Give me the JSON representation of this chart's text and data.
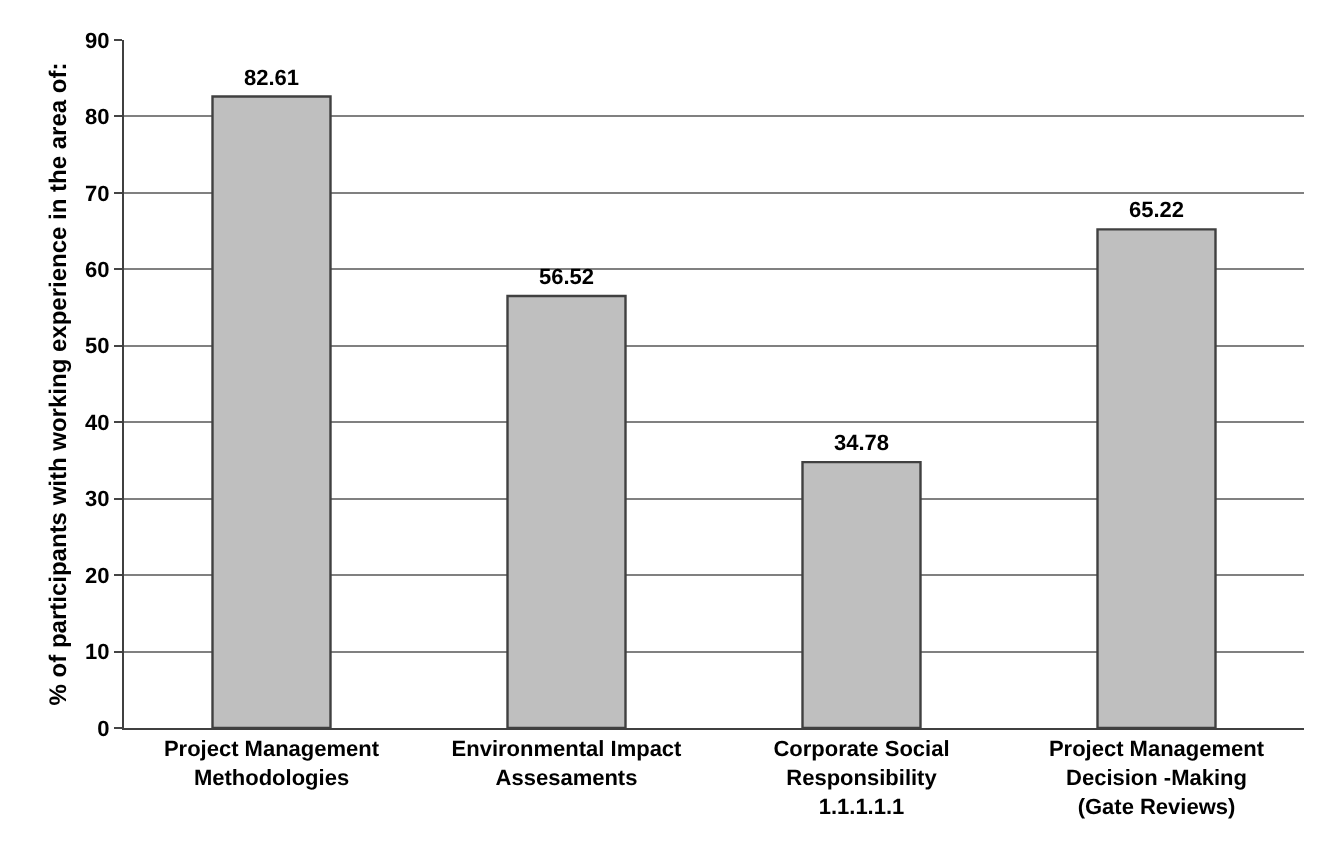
{
  "chart_data": {
    "type": "bar",
    "ylabel": "% of participants with working experience in the area of:",
    "categories": [
      "Project Management\nMethodologies",
      "Environmental Impact\nAssesaments",
      "Corporate Social\nResponsibility\n1.1.1.1.1",
      "Project Management\nDecision -Making\n(Gate Reviews)"
    ],
    "values": [
      82.61,
      56.52,
      34.78,
      65.22
    ],
    "color": "#bfbfbf",
    "data_labels": true,
    "ylim": [
      0,
      90
    ],
    "yticks": [
      0,
      10,
      20,
      30,
      40,
      50,
      60,
      70,
      80,
      90
    ],
    "grid": "y"
  }
}
